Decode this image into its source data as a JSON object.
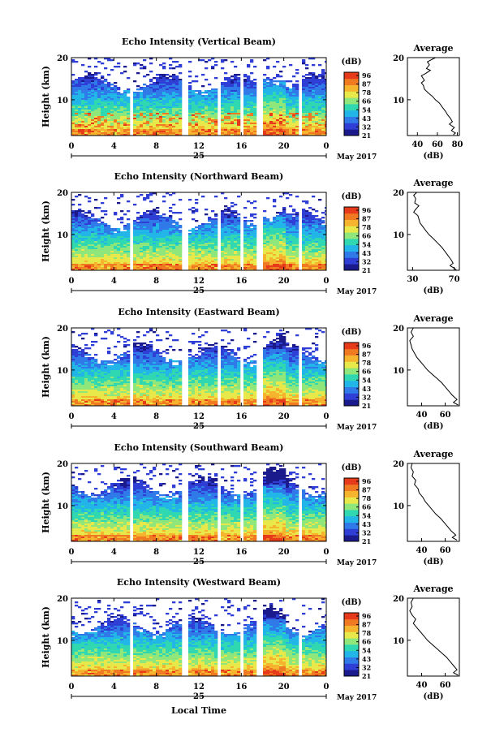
{
  "figure": {
    "month_label": "May 2017",
    "day_label": "25",
    "xlabel": "Local Time",
    "colorbar_unit": "(dB)",
    "colorbar_ticks": [
      "96",
      "87",
      "78",
      "66",
      "54",
      "43",
      "32",
      "21"
    ],
    "colorbar_colors": [
      "#1a1a8c",
      "#2f3fd6",
      "#2f7ae8",
      "#22b5e8",
      "#2fd8b0",
      "#8fe67a",
      "#e8e84a",
      "#f5b32e",
      "#f07a22",
      "#e63a1a"
    ],
    "height_ylabel": "Height (km)",
    "avg_title": "Average",
    "avg_xunit": "(dB)"
  },
  "chart_data": [
    {
      "type": "heatmap",
      "title": "Echo Intensity (Vertical Beam)",
      "ylabel": "Height (km)",
      "yticks": [
        "10",
        "20"
      ],
      "xticks": [
        "0",
        "4",
        "8",
        "12",
        "16",
        "20",
        "0"
      ],
      "x_range": [
        0,
        24
      ],
      "y_range": [
        1.5,
        20
      ],
      "x_gaps_hours": [
        [
          5.2,
          5.7
        ],
        [
          10.2,
          10.9
        ],
        [
          13.6,
          13.9
        ],
        [
          15.6,
          16.2
        ],
        [
          17.2,
          17.8
        ],
        [
          21.2,
          21.5
        ]
      ],
      "cloud_top_km": 14.5,
      "average_profile": {
        "type": "line",
        "title": "Average",
        "xlabel": "(dB)",
        "xticks": [
          "40",
          "60",
          "80"
        ],
        "xlim": [
          30,
          82
        ],
        "ylim": [
          1.5,
          20
        ],
        "yticks": [
          "10",
          "20"
        ],
        "points": [
          [
            58,
            20
          ],
          [
            50,
            19
          ],
          [
            52,
            18.3
          ],
          [
            49,
            17.4
          ],
          [
            53,
            17
          ],
          [
            48,
            16.2
          ],
          [
            44,
            15.7
          ],
          [
            47,
            14.6
          ],
          [
            44,
            14
          ],
          [
            46,
            13.4
          ],
          [
            47,
            12.5
          ],
          [
            51,
            11.6
          ],
          [
            55,
            10.8
          ],
          [
            58,
            10
          ],
          [
            62,
            9.2
          ],
          [
            65,
            8.2
          ],
          [
            68,
            7.3
          ],
          [
            70,
            6.5
          ],
          [
            73,
            5.6
          ],
          [
            75,
            4.8
          ],
          [
            72,
            4.2
          ],
          [
            77,
            3.4
          ],
          [
            74,
            2.7
          ],
          [
            78,
            2.1
          ],
          [
            76,
            1.7
          ]
        ]
      }
    },
    {
      "type": "heatmap",
      "title": "Echo Intensity (Northward Beam)",
      "ylabel": "Height (km)",
      "yticks": [
        "10",
        "20"
      ],
      "xticks": [
        "0",
        "4",
        "8",
        "12",
        "16",
        "20",
        "0"
      ],
      "x_range": [
        0,
        24
      ],
      "y_range": [
        1.5,
        20
      ],
      "x_gaps_hours": [
        [
          5.2,
          5.7
        ],
        [
          10.2,
          10.9
        ],
        [
          13.6,
          13.9
        ],
        [
          15.6,
          16.2
        ],
        [
          17.2,
          17.8
        ],
        [
          21.2,
          21.5
        ]
      ],
      "cloud_top_km": 14.0,
      "average_profile": {
        "type": "line",
        "title": "Average",
        "xlabel": "(dB)",
        "xticks": [
          "30",
          "70"
        ],
        "xlim": [
          25,
          75
        ],
        "ylim": [
          1.5,
          20
        ],
        "yticks": [
          "10",
          "20"
        ],
        "points": [
          [
            34,
            20
          ],
          [
            31,
            19.3
          ],
          [
            33,
            18.5
          ],
          [
            32,
            17.5
          ],
          [
            36,
            16.8
          ],
          [
            33,
            16
          ],
          [
            31,
            15.3
          ],
          [
            35,
            14.5
          ],
          [
            36,
            13.7
          ],
          [
            37,
            12.8
          ],
          [
            40,
            11.8
          ],
          [
            43,
            10.8
          ],
          [
            46,
            9.9
          ],
          [
            50,
            9
          ],
          [
            54,
            8
          ],
          [
            58,
            7
          ],
          [
            61,
            6
          ],
          [
            64,
            5
          ],
          [
            67,
            4
          ],
          [
            69,
            3.2
          ],
          [
            66,
            2.6
          ],
          [
            70,
            2
          ],
          [
            72,
            1.6
          ]
        ]
      }
    },
    {
      "type": "heatmap",
      "title": "Echo Intensity (Eastward Beam)",
      "ylabel": "Height (km)",
      "yticks": [
        "10",
        "20"
      ],
      "xticks": [
        "0",
        "4",
        "8",
        "12",
        "16",
        "20",
        "0"
      ],
      "x_range": [
        0,
        24
      ],
      "y_range": [
        1.5,
        20
      ],
      "x_gaps_hours": [
        [
          5.2,
          5.7
        ],
        [
          10.2,
          10.9
        ],
        [
          13.6,
          13.9
        ],
        [
          15.6,
          16.2
        ],
        [
          17.2,
          17.8
        ],
        [
          21.2,
          21.5
        ]
      ],
      "cloud_top_km": 14.5,
      "average_profile": {
        "type": "line",
        "title": "Average",
        "xlabel": "(dB)",
        "xticks": [
          "40",
          "60"
        ],
        "xlim": [
          28,
          72
        ],
        "ylim": [
          1.5,
          20
        ],
        "yticks": [
          "10",
          "20"
        ],
        "points": [
          [
            33,
            20
          ],
          [
            31,
            19
          ],
          [
            33,
            18
          ],
          [
            30,
            17
          ],
          [
            31,
            16
          ],
          [
            32,
            15
          ],
          [
            34,
            14
          ],
          [
            36,
            13
          ],
          [
            39,
            12
          ],
          [
            42,
            11
          ],
          [
            45,
            10
          ],
          [
            49,
            9
          ],
          [
            53,
            8
          ],
          [
            57,
            7
          ],
          [
            60,
            6
          ],
          [
            63,
            5
          ],
          [
            66,
            4
          ],
          [
            70,
            3
          ],
          [
            67,
            2.3
          ],
          [
            71,
            1.7
          ]
        ]
      }
    },
    {
      "type": "heatmap",
      "title": "Echo Intensity (Southward Beam)",
      "ylabel": "Height (km)",
      "yticks": [
        "10",
        "20"
      ],
      "xticks": [
        "0",
        "4",
        "8",
        "12",
        "16",
        "20",
        "0"
      ],
      "x_range": [
        0,
        24
      ],
      "y_range": [
        1.5,
        20
      ],
      "x_gaps_hours": [
        [
          5.2,
          5.7
        ],
        [
          10.2,
          10.9
        ],
        [
          13.6,
          13.9
        ],
        [
          15.6,
          16.2
        ],
        [
          17.2,
          17.8
        ],
        [
          21.2,
          21.5
        ]
      ],
      "cloud_top_km": 15.0,
      "average_profile": {
        "type": "line",
        "title": "Average",
        "xlabel": "(dB)",
        "xticks": [
          "40",
          "60"
        ],
        "xlim": [
          28,
          72
        ],
        "ylim": [
          1.5,
          20
        ],
        "yticks": [
          "10",
          "20"
        ],
        "points": [
          [
            32,
            20
          ],
          [
            31,
            19
          ],
          [
            33,
            18
          ],
          [
            32,
            17
          ],
          [
            35,
            16
          ],
          [
            34,
            15
          ],
          [
            37,
            14
          ],
          [
            38,
            13
          ],
          [
            41,
            12
          ],
          [
            43,
            11
          ],
          [
            46,
            10
          ],
          [
            49,
            9
          ],
          [
            52,
            8
          ],
          [
            56,
            7
          ],
          [
            59,
            6
          ],
          [
            62,
            5
          ],
          [
            65,
            4
          ],
          [
            69,
            3
          ],
          [
            66,
            2.4
          ],
          [
            70,
            1.8
          ]
        ]
      }
    },
    {
      "type": "heatmap",
      "title": "Echo Intensity (Westward Beam)",
      "ylabel": "Height (km)",
      "yticks": [
        "10",
        "20"
      ],
      "xticks": [
        "0",
        "4",
        "8",
        "12",
        "16",
        "20",
        "0"
      ],
      "x_range": [
        0,
        24
      ],
      "y_range": [
        1.5,
        20
      ],
      "x_gaps_hours": [
        [
          5.2,
          5.7
        ],
        [
          10.2,
          10.9
        ],
        [
          13.6,
          13.9
        ],
        [
          15.6,
          16.2
        ],
        [
          17.2,
          17.8
        ],
        [
          21.2,
          21.5
        ]
      ],
      "cloud_top_km": 14.0,
      "average_profile": {
        "type": "line",
        "title": "Average",
        "xlabel": "(dB)",
        "xticks": [
          "40",
          "60"
        ],
        "xlim": [
          28,
          72
        ],
        "ylim": [
          1.5,
          20
        ],
        "yticks": [
          "10",
          "20"
        ],
        "points": [
          [
            33,
            20
          ],
          [
            31,
            19
          ],
          [
            32,
            18
          ],
          [
            30,
            17
          ],
          [
            32,
            16
          ],
          [
            35,
            15
          ],
          [
            33,
            14
          ],
          [
            36,
            13
          ],
          [
            39,
            12
          ],
          [
            42,
            11
          ],
          [
            45,
            10
          ],
          [
            49,
            9
          ],
          [
            53,
            8
          ],
          [
            57,
            7
          ],
          [
            61,
            6
          ],
          [
            64,
            5
          ],
          [
            67,
            4
          ],
          [
            70,
            3
          ],
          [
            67,
            2.3
          ],
          [
            71,
            1.7
          ]
        ]
      }
    }
  ]
}
